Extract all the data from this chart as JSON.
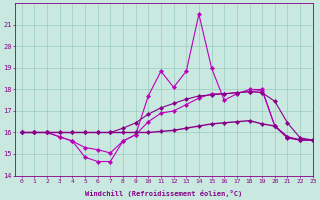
{
  "x": [
    0,
    1,
    2,
    3,
    4,
    5,
    6,
    7,
    8,
    9,
    10,
    11,
    12,
    13,
    14,
    15,
    16,
    17,
    18,
    19,
    20,
    21,
    22,
    23
  ],
  "series": [
    {
      "name": "line1_spiky",
      "y": [
        16.0,
        16.0,
        16.0,
        15.8,
        15.6,
        14.85,
        14.65,
        14.65,
        15.6,
        15.9,
        17.7,
        18.85,
        18.1,
        18.85,
        21.5,
        19.0,
        17.5,
        17.8,
        18.0,
        18.0,
        16.3,
        15.8,
        15.65,
        15.65
      ],
      "color": "#bb00bb",
      "lw": 0.8
    },
    {
      "name": "line2_mid",
      "y": [
        16.0,
        16.0,
        16.0,
        15.8,
        15.6,
        15.3,
        15.2,
        15.05,
        15.6,
        15.9,
        16.5,
        16.9,
        17.0,
        17.3,
        17.6,
        17.8,
        17.8,
        17.85,
        17.9,
        17.95,
        16.3,
        15.8,
        15.65,
        15.65
      ],
      "color": "#bb00bb",
      "lw": 0.8
    },
    {
      "name": "line3_flat",
      "y": [
        16.0,
        16.0,
        16.0,
        16.0,
        16.0,
        16.0,
        16.0,
        16.0,
        16.0,
        16.0,
        16.0,
        16.05,
        16.1,
        16.2,
        16.3,
        16.4,
        16.45,
        16.5,
        16.55,
        16.4,
        16.3,
        15.75,
        15.65,
        15.65
      ],
      "color": "#880088",
      "lw": 1.0
    },
    {
      "name": "line4_smooth",
      "y": [
        16.0,
        16.0,
        16.0,
        16.0,
        16.0,
        16.0,
        16.0,
        16.0,
        16.2,
        16.45,
        16.85,
        17.15,
        17.35,
        17.55,
        17.7,
        17.75,
        17.8,
        17.85,
        17.9,
        17.85,
        17.45,
        16.45,
        15.75,
        15.65
      ],
      "color": "#880088",
      "lw": 0.8
    }
  ],
  "xlabel": "Windchill (Refroidissement éolien,°C)",
  "xlim": [
    -0.5,
    23
  ],
  "ylim": [
    14,
    22
  ],
  "yticks": [
    14,
    15,
    16,
    17,
    18,
    19,
    20,
    21
  ],
  "xticks": [
    0,
    1,
    2,
    3,
    4,
    5,
    6,
    7,
    8,
    9,
    10,
    11,
    12,
    13,
    14,
    15,
    16,
    17,
    18,
    19,
    20,
    21,
    22,
    23
  ],
  "bg_color": "#c8e8e0",
  "grid_color": "#99ccbb",
  "text_color": "#880088",
  "marker": "D",
  "marker_size": 2.2
}
